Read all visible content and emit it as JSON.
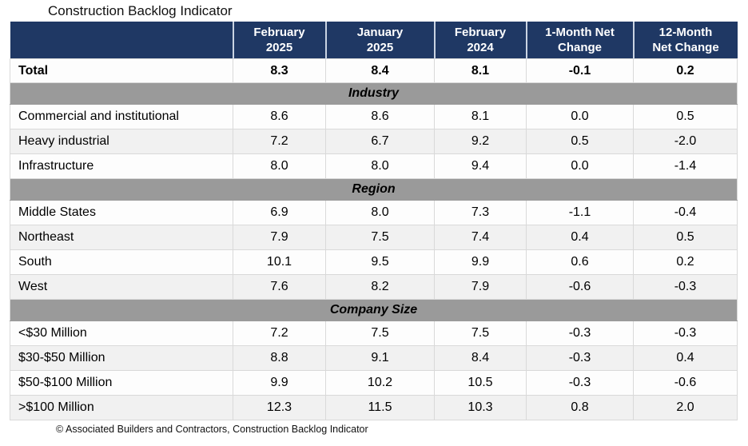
{
  "title": "Construction Backlog Indicator",
  "footer": "© Associated Builders and Contractors, Construction Backlog Indicator",
  "colors": {
    "header_bg": "#1F3864",
    "header_text": "#FFFFFF",
    "section_band_bg": "#9A9A9A",
    "alt_row_bg": "#F1F1F1",
    "cell_border": "#D9D9D9"
  },
  "table": {
    "columns": [
      "",
      "February\n2025",
      "January\n2025",
      "February\n2024",
      "1-Month Net\nChange",
      "12-Month\nNet Change"
    ],
    "total": {
      "label": "Total",
      "values": [
        "8.3",
        "8.4",
        "8.1",
        "-0.1",
        "0.2"
      ]
    },
    "sections": [
      {
        "name": "Industry",
        "rows": [
          {
            "label": "Commercial and institutional",
            "values": [
              "8.6",
              "8.6",
              "8.1",
              "0.0",
              "0.5"
            ]
          },
          {
            "label": "Heavy industrial",
            "values": [
              "7.2",
              "6.7",
              "9.2",
              "0.5",
              "-2.0"
            ]
          },
          {
            "label": "Infrastructure",
            "values": [
              "8.0",
              "8.0",
              "9.4",
              "0.0",
              "-1.4"
            ]
          }
        ]
      },
      {
        "name": "Region",
        "rows": [
          {
            "label": "Middle States",
            "values": [
              "6.9",
              "8.0",
              "7.3",
              "-1.1",
              "-0.4"
            ]
          },
          {
            "label": "Northeast",
            "values": [
              "7.9",
              "7.5",
              "7.4",
              "0.4",
              "0.5"
            ]
          },
          {
            "label": "South",
            "values": [
              "10.1",
              "9.5",
              "9.9",
              "0.6",
              "0.2"
            ]
          },
          {
            "label": "West",
            "values": [
              "7.6",
              "8.2",
              "7.9",
              "-0.6",
              "-0.3"
            ]
          }
        ]
      },
      {
        "name": "Company Size",
        "rows": [
          {
            "label": "<$30 Million",
            "values": [
              "7.2",
              "7.5",
              "7.5",
              "-0.3",
              "-0.3"
            ]
          },
          {
            "label": "$30-$50 Million",
            "values": [
              "8.8",
              "9.1",
              "8.4",
              "-0.3",
              "0.4"
            ]
          },
          {
            "label": "$50-$100 Million",
            "values": [
              "9.9",
              "10.2",
              "10.5",
              "-0.3",
              "-0.6"
            ]
          },
          {
            "label": ">$100 Million",
            "values": [
              "12.3",
              "11.5",
              "10.3",
              "0.8",
              "2.0"
            ]
          }
        ]
      }
    ]
  },
  "chart_data": {
    "type": "table",
    "title": "Construction Backlog Indicator",
    "columns": [
      "February 2025",
      "January 2025",
      "February 2024",
      "1-Month Net Change",
      "12-Month Net Change"
    ],
    "rows": [
      {
        "group": "Total",
        "label": "Total",
        "values": [
          8.3,
          8.4,
          8.1,
          -0.1,
          0.2
        ]
      },
      {
        "group": "Industry",
        "label": "Commercial and institutional",
        "values": [
          8.6,
          8.6,
          8.1,
          0.0,
          0.5
        ]
      },
      {
        "group": "Industry",
        "label": "Heavy industrial",
        "values": [
          7.2,
          6.7,
          9.2,
          0.5,
          -2.0
        ]
      },
      {
        "group": "Industry",
        "label": "Infrastructure",
        "values": [
          8.0,
          8.0,
          9.4,
          0.0,
          -1.4
        ]
      },
      {
        "group": "Region",
        "label": "Middle States",
        "values": [
          6.9,
          8.0,
          7.3,
          -1.1,
          -0.4
        ]
      },
      {
        "group": "Region",
        "label": "Northeast",
        "values": [
          7.9,
          7.5,
          7.4,
          0.4,
          0.5
        ]
      },
      {
        "group": "Region",
        "label": "South",
        "values": [
          10.1,
          9.5,
          9.9,
          0.6,
          0.2
        ]
      },
      {
        "group": "Region",
        "label": "West",
        "values": [
          7.6,
          8.2,
          7.9,
          -0.6,
          -0.3
        ]
      },
      {
        "group": "Company Size",
        "label": "<$30 Million",
        "values": [
          7.2,
          7.5,
          7.5,
          -0.3,
          -0.3
        ]
      },
      {
        "group": "Company Size",
        "label": "$30-$50 Million",
        "values": [
          8.8,
          9.1,
          8.4,
          -0.3,
          0.4
        ]
      },
      {
        "group": "Company Size",
        "label": "$50-$100 Million",
        "values": [
          9.9,
          10.2,
          10.5,
          -0.3,
          -0.6
        ]
      },
      {
        "group": "Company Size",
        "label": ">$100 Million",
        "values": [
          12.3,
          11.5,
          10.3,
          0.8,
          2.0
        ]
      }
    ],
    "source_note": "© Associated Builders and Contractors, Construction Backlog Indicator"
  }
}
